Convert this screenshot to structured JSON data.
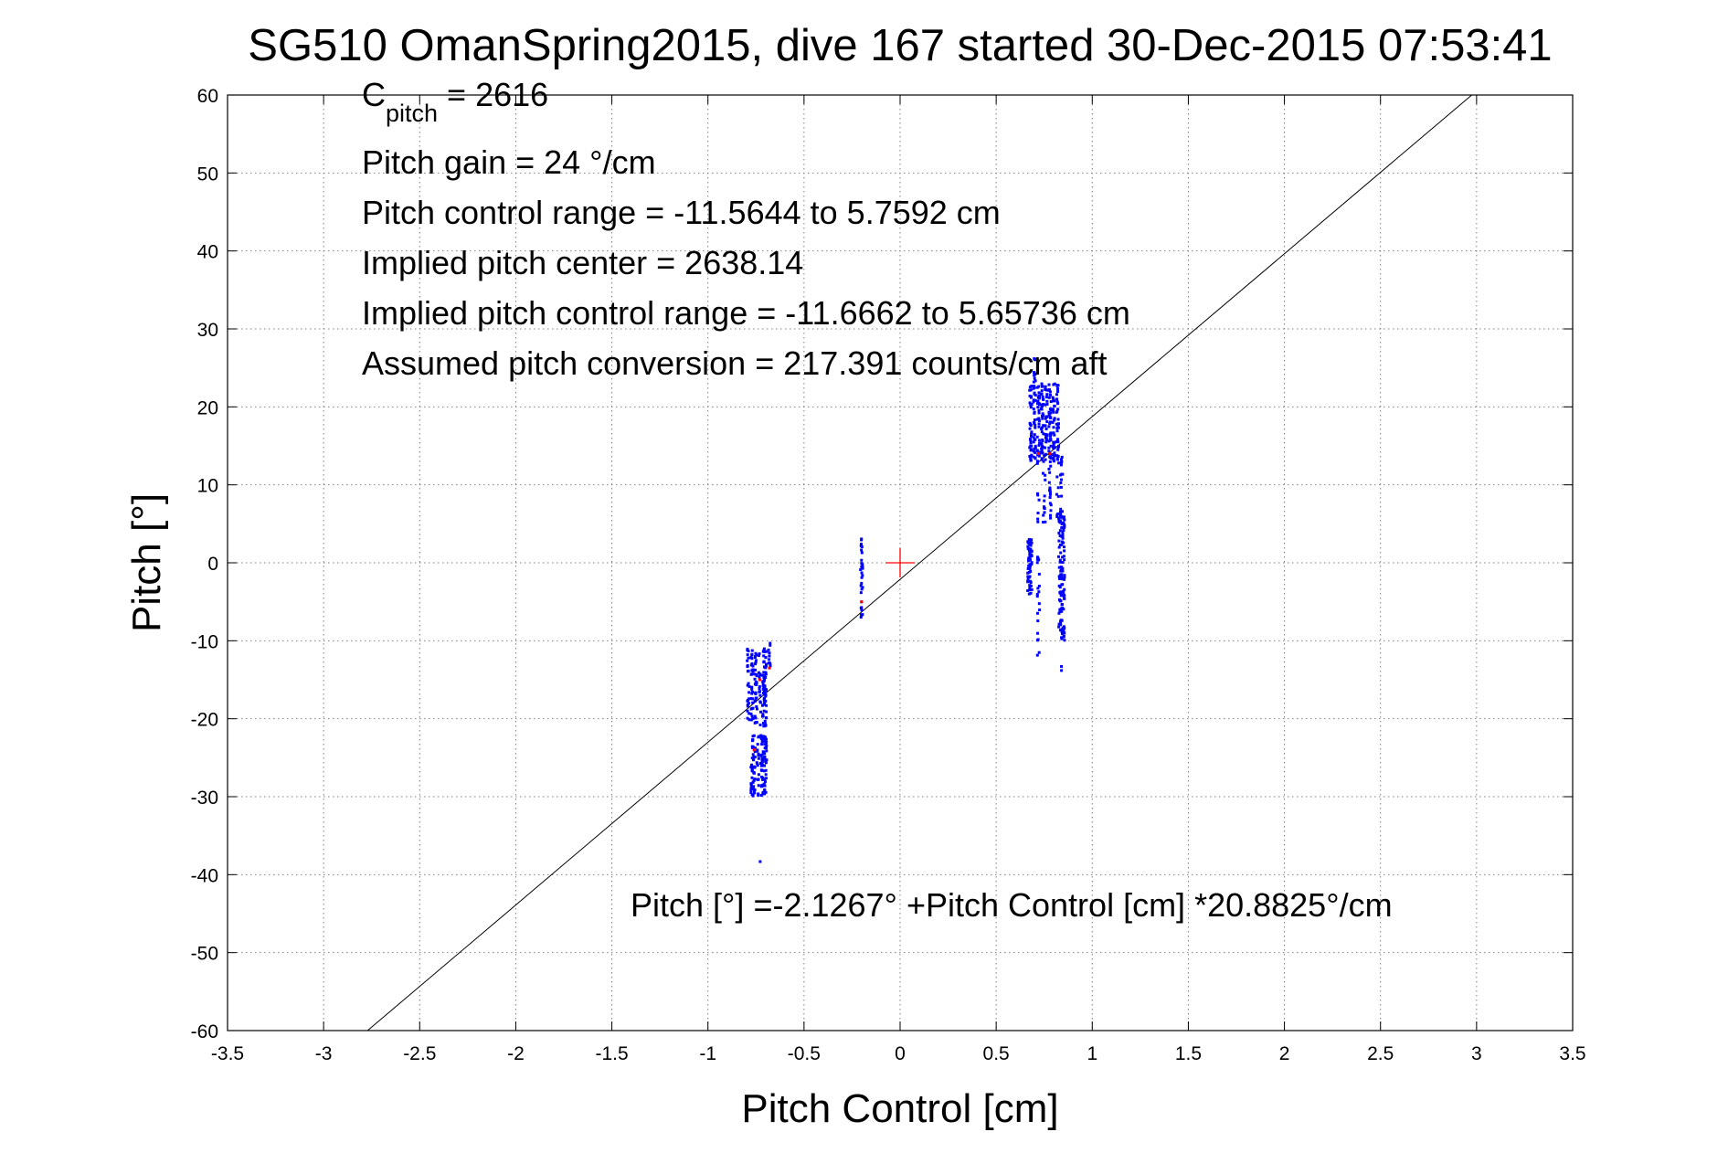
{
  "chart_data": {
    "type": "scatter",
    "title": "SG510 OmanSpring2015, dive 167 started 30-Dec-2015 07:53:41",
    "xlabel": "Pitch Control [cm]",
    "ylabel": "Pitch [°]",
    "xlim": [
      -3.5,
      3.5
    ],
    "ylim": [
      -60,
      60
    ],
    "grid": true,
    "x_ticks": [
      -3.5,
      -3,
      -2.5,
      -2,
      -1.5,
      -1,
      -0.5,
      0,
      0.5,
      1,
      1.5,
      2,
      2.5,
      3,
      3.5
    ],
    "y_ticks": [
      -60,
      -50,
      -40,
      -30,
      -20,
      -10,
      0,
      10,
      20,
      30,
      40,
      50,
      60
    ],
    "x_tick_labels": [
      "-3.5",
      "-3",
      "-2.5",
      "-2",
      "-1.5",
      "-1",
      "-0.5",
      "0",
      "0.5",
      "1",
      "1.5",
      "2",
      "2.5",
      "3",
      "3.5"
    ],
    "y_tick_labels": [
      "-60",
      "-50",
      "-40",
      "-30",
      "-20",
      "-10",
      "0",
      "10",
      "20",
      "30",
      "40",
      "50",
      "60"
    ],
    "annotations": {
      "c_pitch_prefix": "C",
      "c_pitch_sub": "pitch",
      "c_pitch_value": " = 2616",
      "pitch_gain": "Pitch gain = 24 °/cm",
      "pitch_control_range": "Pitch control range = -11.5644 to 5.7592 cm",
      "implied_center": "Implied pitch center = 2638.14",
      "implied_range": "Implied pitch control range = -11.6662 to 5.65736 cm",
      "assumed_conversion": "Assumed pitch conversion = 217.391 counts/cm aft",
      "fit_equation": "Pitch [°] =-2.1267° +Pitch Control [cm] *20.8825°/cm"
    },
    "fit_line": {
      "intercept": -2.1267,
      "slope": 20.8825,
      "color": "#000000"
    },
    "center_marker": {
      "x": 0,
      "y": 0,
      "color": "#ff0000"
    },
    "series_colors": {
      "observed": "#0000ff",
      "selected": "#ff0000"
    },
    "clusters": [
      {
        "x_values": [
          -0.79,
          -0.77,
          -0.75,
          -0.73,
          -0.71,
          -0.7
        ],
        "y_min": -21,
        "y_max": -11,
        "count": 170
      },
      {
        "x_values": [
          -0.68
        ],
        "y_min": -13.5,
        "y_max": -10,
        "count": 10
      },
      {
        "x_values": [
          -0.77,
          -0.76,
          -0.74,
          -0.72,
          -0.71,
          -0.7
        ],
        "y_min": -30,
        "y_max": -22,
        "count": 140
      },
      {
        "x_values": [
          -0.73
        ],
        "y_min": -39,
        "y_max": -38,
        "count": 1
      },
      {
        "x_values": [
          -0.2
        ],
        "y_min": -7,
        "y_max": 4,
        "count": 30
      },
      {
        "x_values": [
          0.68,
          0.7,
          0.72,
          0.74,
          0.76,
          0.78,
          0.8,
          0.82
        ],
        "y_min": 13,
        "y_max": 23,
        "count": 260
      },
      {
        "x_values": [
          0.7
        ],
        "y_min": 22,
        "y_max": 27,
        "count": 10
      },
      {
        "x_values": [
          0.72,
          0.75,
          0.78
        ],
        "y_min": 5,
        "y_max": 14,
        "count": 40
      },
      {
        "x_values": [
          0.82,
          0.84
        ],
        "y_min": 5,
        "y_max": 15,
        "count": 30
      },
      {
        "x_values": [
          0.67,
          0.68
        ],
        "y_min": -4,
        "y_max": 3,
        "count": 60
      },
      {
        "x_values": [
          0.72
        ],
        "y_min": -12,
        "y_max": 1,
        "count": 20
      },
      {
        "x_values": [
          0.83,
          0.84,
          0.85
        ],
        "y_min": -10,
        "y_max": 6,
        "count": 120
      },
      {
        "x_values": [
          0.84
        ],
        "y_min": -14,
        "y_max": -13,
        "count": 2
      }
    ],
    "selected_points": [
      {
        "x": -0.73,
        "y": -15
      },
      {
        "x": -0.68,
        "y": -13.5
      },
      {
        "x": -0.76,
        "y": -24
      },
      {
        "x": -0.2,
        "y": -5
      },
      {
        "x": 0.72,
        "y": 14
      },
      {
        "x": 0.78,
        "y": 14
      }
    ]
  }
}
